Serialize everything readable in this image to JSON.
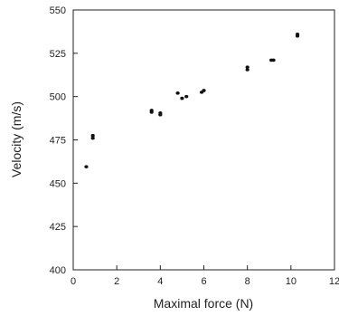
{
  "chart_data": {
    "type": "scatter",
    "title": "",
    "xlabel": "Maximal force (N)",
    "ylabel": "Velocity (m/s)",
    "xlim": [
      0,
      12
    ],
    "ylim": [
      400,
      550
    ],
    "x_ticks": [
      0,
      2,
      4,
      6,
      8,
      10,
      12
    ],
    "x_tick_labels": [
      "0",
      "2",
      "4",
      "6",
      "8",
      "10",
      "12"
    ],
    "y_ticks": [
      400,
      425,
      450,
      475,
      500,
      525,
      550
    ],
    "y_tick_labels": [
      "400",
      "425",
      "450",
      "475",
      "500",
      "525",
      "550"
    ],
    "grid": false,
    "legend": "none",
    "marker_color": "#111111",
    "series": [
      {
        "x": [
          0.6,
          0.9,
          0.9,
          3.6,
          3.6,
          4.0,
          4.0,
          4.8,
          5.0,
          5.2,
          5.9,
          6.0,
          8.0,
          8.0,
          9.1,
          9.2,
          10.3,
          10.3
        ],
        "y": [
          459.5,
          476.0,
          477.5,
          491.0,
          492.0,
          489.5,
          490.5,
          502.0,
          499.0,
          500.0,
          502.5,
          503.5,
          515.5,
          517.0,
          521.0,
          521.0,
          535.0,
          536.0
        ]
      }
    ]
  }
}
